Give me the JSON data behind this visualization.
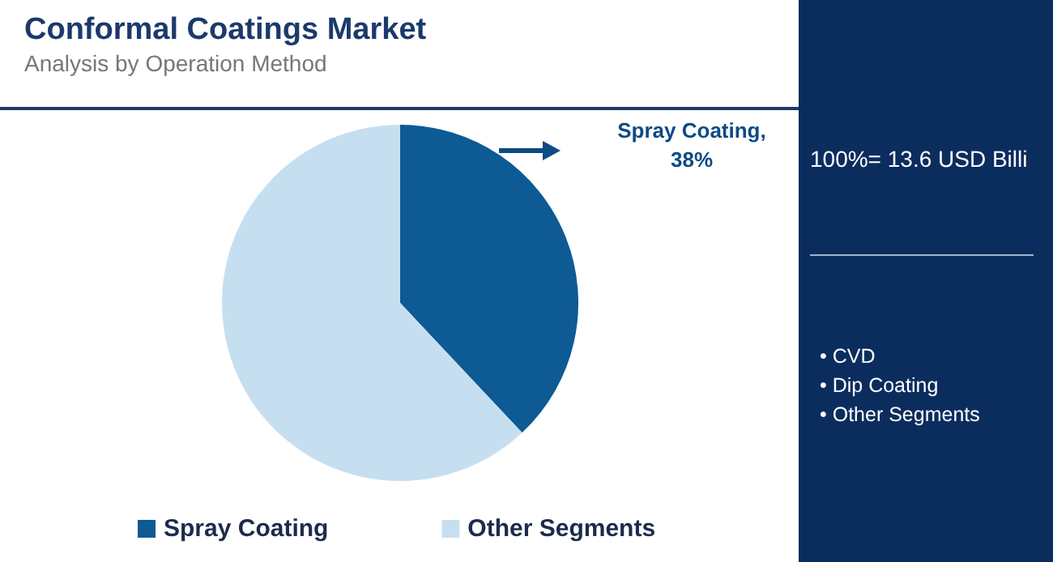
{
  "chart_data": {
    "type": "pie",
    "title": "Conformal Coatings Market",
    "subtitle": "Analysis by Operation Method",
    "categories": [
      "Spray Coating",
      "Other Segments"
    ],
    "values": [
      38,
      62
    ],
    "colors": [
      "#0d5a94",
      "#c6dff0"
    ],
    "value_labels": [
      "Spray Coating, 38%",
      null
    ],
    "legend": "bottom",
    "annotations": [
      "100%= 13.6 USD Billi",
      "• CVD",
      "• Dip Coating",
      "• Other Segments"
    ]
  }
}
